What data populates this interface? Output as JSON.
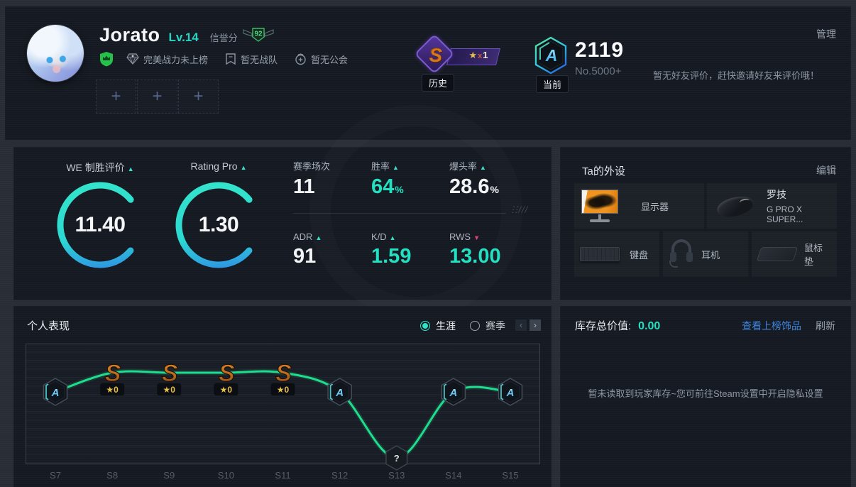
{
  "header": {
    "name": "Jorato",
    "level": "Lv.14",
    "credit_label": "信誉分",
    "credit_score": "92",
    "tags": [
      {
        "icon": "diamond-icon",
        "label": "完美战力未上榜"
      },
      {
        "icon": "flag-icon",
        "label": "暂无战队"
      },
      {
        "icon": "gift-icon",
        "label": "暂无公会"
      }
    ],
    "plus": "+",
    "history": {
      "caption": "历史",
      "grade": "S",
      "star": "★",
      "times": "x",
      "count": "1"
    },
    "current": {
      "caption": "当前",
      "grade": "A",
      "score": "2119",
      "rank": "No.5000+"
    },
    "friend_tip": "暂无好友评价，赶快邀请好友来评价哦！",
    "manage": "管理"
  },
  "stats_panel": {
    "gauges": [
      {
        "label": "WE 制胜评价",
        "arrow": "▲",
        "value": "11.40"
      },
      {
        "label": "Rating Pro",
        "arrow": "▲",
        "value": "1.30"
      }
    ],
    "stats": [
      {
        "label": "赛季场次",
        "arrow": "",
        "value": "11",
        "unit": ""
      },
      {
        "label": "胜率",
        "arrow": "▲",
        "value": "64",
        "unit": "%"
      },
      {
        "label": "爆头率",
        "arrow": "▲",
        "value": "28.6",
        "unit": "%"
      },
      {
        "label": "ADR",
        "arrow": "▲",
        "value": "91",
        "unit": ""
      },
      {
        "label": "K/D",
        "arrow": "▲",
        "value": "1.59",
        "unit": ""
      },
      {
        "label": "RWS",
        "arrow": "▼",
        "value": "13.00",
        "unit": ""
      }
    ]
  },
  "gear": {
    "title": "Ta的外设",
    "edit": "编辑",
    "monitor_label": "显示器",
    "mouse_brand": "罗技",
    "mouse_model": "G PRO X SUPER...",
    "keyboard_label": "键盘",
    "headset_label": "耳机",
    "mousepad_label": "鼠标垫"
  },
  "performance": {
    "title": "个人表现",
    "modes": [
      {
        "label": "生涯",
        "selected": true
      },
      {
        "label": "赛季",
        "selected": false
      }
    ],
    "pager_prev": "‹",
    "pager_next": "›",
    "chart_data": {
      "type": "line",
      "categories": [
        "S7",
        "S8",
        "S9",
        "S10",
        "S11",
        "S12",
        "S13",
        "S14",
        "S15"
      ],
      "ranks": [
        "A",
        "S",
        "S",
        "S",
        "S",
        "A",
        "?",
        "A",
        "A"
      ],
      "stars": [
        null,
        0,
        0,
        0,
        0,
        null,
        null,
        null,
        null
      ],
      "levels": [
        1,
        2,
        2,
        2,
        2,
        1,
        0,
        1,
        1
      ],
      "level_meaning": "2=S tier, 1=A tier, 0=unknown",
      "line_color": "#1fdd8e",
      "grid": true
    }
  },
  "inventory": {
    "total_label": "库存总价值:",
    "total_value": "0.00",
    "link": "查看上榜饰品",
    "refresh": "刷新",
    "empty": "暂未读取到玩家库存~您可前往Steam设置中开启隐私设置"
  },
  "colors": {
    "accent_cyan": "#23e0c0",
    "level_cyan": "#27d3c3",
    "link_blue": "#3e86dd",
    "line_green": "#1fdd8e",
    "down_pink": "#e8436e",
    "rank_s_orange": "#d8761c",
    "star_gold": "#e8c048",
    "credit_green": "#4fdc7e",
    "gauge_blue": "#2f7bea",
    "panel_bg": "#151a22"
  }
}
